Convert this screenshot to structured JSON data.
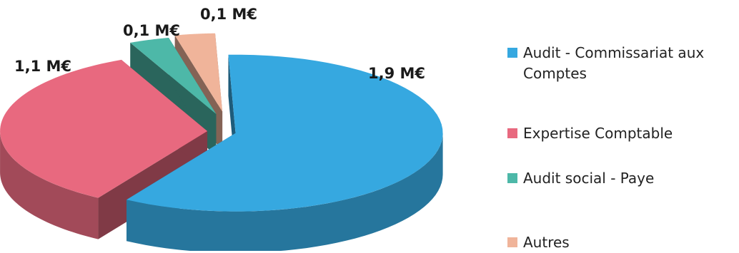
{
  "chart_data": {
    "type": "pie",
    "style": "3d-exploded",
    "title": "",
    "unit": "M€",
    "slices": [
      {
        "label": "Audit - Commissariat aux Comptes",
        "value": 1.9,
        "data_label": "1,9 M€",
        "color": "#36A8E0"
      },
      {
        "label": "Expertise Comptable",
        "value": 1.1,
        "data_label": "1,1 M€",
        "color": "#E8697F"
      },
      {
        "label": "Audit social - Paye",
        "value": 0.1,
        "data_label": "0,1 M€",
        "color": "#4DB8A8"
      },
      {
        "label": "Autres",
        "value": 0.1,
        "data_label": "0,1 M€",
        "color": "#F0B49A"
      }
    ],
    "legend_position": "right"
  }
}
